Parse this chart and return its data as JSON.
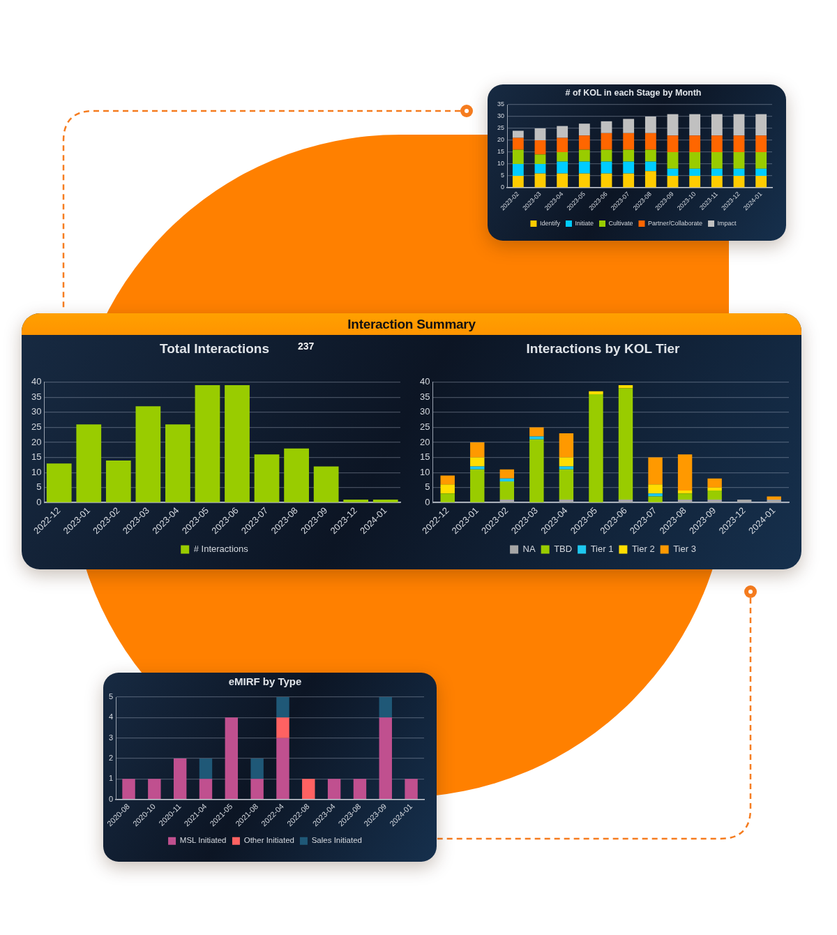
{
  "chart_data": [
    {
      "type": "bar",
      "title": "# of KOL in each Stage by Month",
      "categories": [
        "2023-02",
        "2023-03",
        "2023-04",
        "2023-05",
        "2023-06",
        "2023-07",
        "2023-08",
        "2023-09",
        "2023-10",
        "2023-11",
        "2023-12",
        "2024-01"
      ],
      "stacked": true,
      "series": [
        {
          "name": "Identify",
          "color": "#ffcc00",
          "values": [
            5,
            6,
            6,
            6,
            6,
            6,
            7,
            5,
            5,
            5,
            5,
            5
          ]
        },
        {
          "name": "Initiate",
          "color": "#00ccff",
          "values": [
            5,
            4,
            5,
            5,
            5,
            5,
            4,
            3,
            3,
            3,
            3,
            3
          ]
        },
        {
          "name": "Cultivate",
          "color": "#99cc00",
          "values": [
            6,
            4,
            4,
            5,
            5,
            5,
            5,
            7,
            7,
            7,
            7,
            7
          ]
        },
        {
          "name": "Partner/Collaborate",
          "color": "#ff6600",
          "values": [
            5,
            6,
            6,
            6,
            7,
            7,
            7,
            7,
            7,
            7,
            7,
            7
          ]
        },
        {
          "name": "Impact",
          "color": "#c0c0c0",
          "values": [
            3,
            5,
            5,
            5,
            5,
            6,
            7,
            9,
            9,
            9,
            9,
            9
          ]
        }
      ],
      "ylim": [
        0,
        35
      ],
      "yticks": [
        0,
        5,
        10,
        15,
        20,
        25,
        30,
        35
      ],
      "grid": "y",
      "legend": "bottom"
    },
    {
      "type": "other",
      "title": "Interaction Summary"
    },
    {
      "type": "bar",
      "title": "Total Interactions",
      "annotations": [
        "237"
      ],
      "categories": [
        "2022-12",
        "2023-01",
        "2023-02",
        "2023-03",
        "2023-04",
        "2023-05",
        "2023-06",
        "2023-07",
        "2023-08",
        "2023-09",
        "2023-12",
        "2024-01"
      ],
      "series": [
        {
          "name": "# Interactions",
          "color": "#99cc00",
          "values": [
            13,
            26,
            14,
            32,
            26,
            39,
            39,
            16,
            18,
            12,
            1,
            1
          ]
        }
      ],
      "ylim": [
        0,
        40
      ],
      "yticks": [
        0,
        5,
        10,
        15,
        20,
        25,
        30,
        35,
        40
      ],
      "grid": "y",
      "legend": "bottom"
    },
    {
      "type": "bar",
      "title": "Interactions by KOL Tier",
      "categories": [
        "2022-12",
        "2023-01",
        "2023-02",
        "2023-03",
        "2023-04",
        "2023-05",
        "2023-06",
        "2023-07",
        "2023-08",
        "2023-09",
        "2023-12",
        "2024-01"
      ],
      "stacked": true,
      "series": [
        {
          "name": "NA",
          "color": "#a6a6a6",
          "values": [
            0,
            0,
            1,
            0,
            1,
            0,
            1,
            0,
            1,
            1,
            1,
            1
          ]
        },
        {
          "name": "TBD",
          "color": "#99cc00",
          "values": [
            3,
            11,
            6,
            21,
            10,
            36,
            37,
            2,
            2,
            3,
            0,
            0
          ]
        },
        {
          "name": "Tier 1",
          "color": "#1ec8f0",
          "values": [
            0,
            1,
            1,
            1,
            1,
            0,
            0,
            1,
            0,
            0,
            0,
            0
          ]
        },
        {
          "name": "Tier 2",
          "color": "#ffdd00",
          "values": [
            3,
            3,
            0,
            0,
            3,
            1,
            1,
            3,
            1,
            1,
            0,
            0
          ]
        },
        {
          "name": "Tier 3",
          "color": "#ff9900",
          "values": [
            3,
            5,
            3,
            3,
            8,
            0,
            0,
            9,
            12,
            3,
            0,
            1
          ]
        }
      ],
      "ylim": [
        0,
        40
      ],
      "yticks": [
        0,
        5,
        10,
        15,
        20,
        25,
        30,
        35,
        40
      ],
      "grid": "y",
      "legend": "bottom"
    },
    {
      "type": "bar",
      "title": "eMIRF by Type",
      "categories": [
        "2020-08",
        "2020-10",
        "2020-11",
        "2021-04",
        "2021-05",
        "2021-08",
        "2022-04",
        "2022-08",
        "2023-04",
        "2023-08",
        "2023-09",
        "2024-01"
      ],
      "stacked": true,
      "series": [
        {
          "name": "MSL Initiated",
          "color": "#c0508f",
          "values": [
            1,
            1,
            2,
            1,
            4,
            1,
            3,
            0,
            1,
            1,
            4,
            1
          ]
        },
        {
          "name": "Other Initiated",
          "color": "#ff6262",
          "values": [
            0,
            0,
            0,
            0,
            0,
            0,
            1,
            1,
            0,
            0,
            0,
            0
          ]
        },
        {
          "name": "Sales Initiated",
          "color": "#1f5877",
          "values": [
            0,
            0,
            0,
            1,
            0,
            1,
            1,
            0,
            0,
            0,
            1,
            0
          ]
        }
      ],
      "ylim": [
        0,
        5
      ],
      "yticks": [
        0,
        1,
        2,
        3,
        4,
        5
      ],
      "grid": "y",
      "legend": "bottom"
    }
  ]
}
